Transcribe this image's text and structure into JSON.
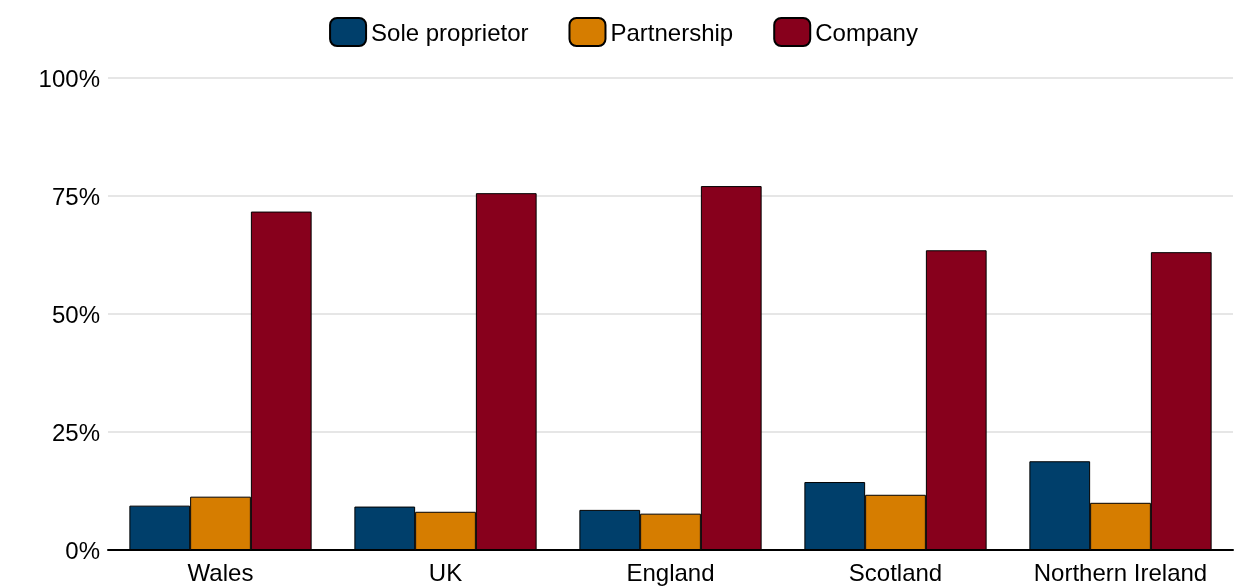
{
  "chart_data": {
    "type": "bar",
    "categories": [
      "Wales",
      "UK",
      "England",
      "Scotland",
      "Northern Ireland"
    ],
    "series": [
      {
        "name": "Sole proprietor",
        "color": "#003f6b",
        "values": [
          9.4,
          9.2,
          8.5,
          14.4,
          18.8
        ]
      },
      {
        "name": "Partnership",
        "color": "#d67d00",
        "values": [
          11.3,
          8.1,
          7.7,
          11.7,
          10
        ]
      },
      {
        "name": "Company",
        "color": "#87001c",
        "values": [
          71.7,
          75.6,
          77.1,
          63.5,
          63.1
        ]
      }
    ],
    "ylim": [
      0,
      100
    ],
    "yticks": [
      {
        "value": 0,
        "label": "0%"
      },
      {
        "value": 25,
        "label": "25%"
      },
      {
        "value": 50,
        "label": "50%"
      },
      {
        "value": 75,
        "label": "75%"
      },
      {
        "value": 100,
        "label": "100%"
      }
    ],
    "grid": "y",
    "legend": "top"
  }
}
